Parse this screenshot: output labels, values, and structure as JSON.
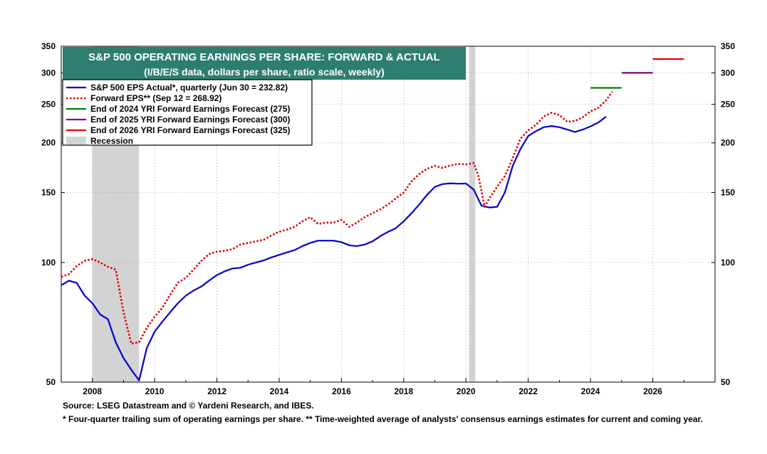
{
  "chart_data": {
    "type": "line",
    "scale": "log",
    "title": "S&P 500 OPERATING EARNINGS PER SHARE: FORWARD & ACTUAL",
    "subtitle": "(I/B/E/S data, dollars per share, ratio scale, weekly)",
    "xlim": [
      2007.0,
      2028.0
    ],
    "ylim": [
      50,
      350
    ],
    "x_ticks": [
      2008,
      2010,
      2012,
      2014,
      2016,
      2018,
      2020,
      2022,
      2024,
      2026
    ],
    "y_ticks": [
      50,
      100,
      150,
      200,
      250,
      300,
      350
    ],
    "recessions": [
      [
        2008.0,
        2009.5
      ],
      [
        2020.1,
        2020.3
      ]
    ],
    "legend": [
      {
        "label": "S&P 500 EPS Actual*, quarterly (Jun 30 = 232.82)",
        "color": "#0000cc",
        "style": "solid"
      },
      {
        "label": "Forward EPS** (Sep 12 = 268.92)",
        "color": "#dd0000",
        "style": "dotted"
      },
      {
        "label": "End of 2024 YRI Forward Earnings Forecast (275)",
        "color": "#008000",
        "style": "solid"
      },
      {
        "label": "End of 2025 YRI Forward Earnings Forecast (300)",
        "color": "#800080",
        "style": "solid"
      },
      {
        "label": "End of 2026 YRI Forward Earnings Forecast (325)",
        "color": "#ee0000",
        "style": "solid"
      },
      {
        "label": "Recession",
        "color": "#d3d3d3",
        "style": "box"
      }
    ],
    "series": [
      {
        "name": "S&P 500 EPS Actual",
        "color": "#0000cc",
        "style": "solid",
        "points": [
          [
            2007.0,
            87.7
          ],
          [
            2007.25,
            90.0
          ],
          [
            2007.5,
            88.8
          ],
          [
            2007.75,
            82.5
          ],
          [
            2008.0,
            79.0
          ],
          [
            2008.25,
            74.0
          ],
          [
            2008.5,
            72.0
          ],
          [
            2008.75,
            63.0
          ],
          [
            2009.0,
            57.5
          ],
          [
            2009.25,
            53.7
          ],
          [
            2009.5,
            50.5
          ],
          [
            2009.75,
            61.0
          ],
          [
            2010.0,
            67.0
          ],
          [
            2010.25,
            71.0
          ],
          [
            2010.5,
            75.0
          ],
          [
            2010.75,
            79.0
          ],
          [
            2011.0,
            82.5
          ],
          [
            2011.25,
            85.0
          ],
          [
            2011.5,
            87.0
          ],
          [
            2011.75,
            90.0
          ],
          [
            2012.0,
            93.0
          ],
          [
            2012.25,
            95.0
          ],
          [
            2012.5,
            96.6
          ],
          [
            2012.75,
            97.0
          ],
          [
            2013.0,
            98.7
          ],
          [
            2013.25,
            100.0
          ],
          [
            2013.5,
            101.2
          ],
          [
            2013.75,
            103.0
          ],
          [
            2014.0,
            104.5
          ],
          [
            2014.25,
            106.0
          ],
          [
            2014.5,
            107.5
          ],
          [
            2014.75,
            110.0
          ],
          [
            2015.0,
            112.0
          ],
          [
            2015.25,
            113.5
          ],
          [
            2015.5,
            113.5
          ],
          [
            2015.75,
            113.5
          ],
          [
            2016.0,
            112.5
          ],
          [
            2016.25,
            110.5
          ],
          [
            2016.5,
            110.0
          ],
          [
            2016.75,
            111.0
          ],
          [
            2017.0,
            113.0
          ],
          [
            2017.25,
            116.5
          ],
          [
            2017.5,
            119.5
          ],
          [
            2017.75,
            122.0
          ],
          [
            2018.0,
            127.0
          ],
          [
            2018.25,
            133.0
          ],
          [
            2018.5,
            140.0
          ],
          [
            2018.75,
            148.0
          ],
          [
            2019.0,
            155.0
          ],
          [
            2019.25,
            157.5
          ],
          [
            2019.5,
            158.2
          ],
          [
            2019.75,
            157.8
          ],
          [
            2020.0,
            158.0
          ],
          [
            2020.25,
            152.5
          ],
          [
            2020.5,
            139.0
          ],
          [
            2020.75,
            137.5
          ],
          [
            2021.0,
            138.0
          ],
          [
            2021.25,
            150.0
          ],
          [
            2021.5,
            175.0
          ],
          [
            2021.75,
            193.0
          ],
          [
            2022.0,
            208.0
          ],
          [
            2022.25,
            214.0
          ],
          [
            2022.5,
            219.0
          ],
          [
            2022.75,
            220.5
          ],
          [
            2023.0,
            219.0
          ],
          [
            2023.25,
            216.0
          ],
          [
            2023.5,
            213.0
          ],
          [
            2023.75,
            216.0
          ],
          [
            2024.0,
            220.0
          ],
          [
            2024.25,
            225.0
          ],
          [
            2024.5,
            232.8
          ]
        ]
      },
      {
        "name": "Forward EPS",
        "color": "#dd0000",
        "style": "dotted",
        "points": [
          [
            2007.0,
            92.0
          ],
          [
            2007.25,
            93.5
          ],
          [
            2007.5,
            98.0
          ],
          [
            2007.75,
            101.0
          ],
          [
            2008.0,
            102.0
          ],
          [
            2008.25,
            100.0
          ],
          [
            2008.5,
            97.5
          ],
          [
            2008.75,
            96.0
          ],
          [
            2009.0,
            75.0
          ],
          [
            2009.25,
            62.5
          ],
          [
            2009.5,
            63.0
          ],
          [
            2009.75,
            68.5
          ],
          [
            2010.0,
            73.0
          ],
          [
            2010.25,
            77.0
          ],
          [
            2010.5,
            83.0
          ],
          [
            2010.75,
            89.0
          ],
          [
            2011.0,
            91.5
          ],
          [
            2011.25,
            96.0
          ],
          [
            2011.5,
            101.0
          ],
          [
            2011.75,
            105.0
          ],
          [
            2012.0,
            106.5
          ],
          [
            2012.25,
            107.0
          ],
          [
            2012.5,
            108.0
          ],
          [
            2012.75,
            111.0
          ],
          [
            2013.0,
            112.0
          ],
          [
            2013.25,
            113.0
          ],
          [
            2013.5,
            114.0
          ],
          [
            2013.75,
            117.0
          ],
          [
            2014.0,
            119.5
          ],
          [
            2014.25,
            121.0
          ],
          [
            2014.5,
            123.0
          ],
          [
            2014.75,
            127.0
          ],
          [
            2015.0,
            130.0
          ],
          [
            2015.25,
            125.0
          ],
          [
            2015.5,
            126.0
          ],
          [
            2015.75,
            126.0
          ],
          [
            2016.0,
            128.0
          ],
          [
            2016.25,
            123.0
          ],
          [
            2016.5,
            126.0
          ],
          [
            2016.75,
            130.0
          ],
          [
            2017.0,
            133.0
          ],
          [
            2017.25,
            136.0
          ],
          [
            2017.5,
            140.0
          ],
          [
            2017.75,
            145.0
          ],
          [
            2018.0,
            150.0
          ],
          [
            2018.25,
            160.0
          ],
          [
            2018.5,
            167.0
          ],
          [
            2018.75,
            172.0
          ],
          [
            2019.0,
            175.0
          ],
          [
            2019.25,
            173.0
          ],
          [
            2019.5,
            175.5
          ],
          [
            2019.75,
            177.0
          ],
          [
            2020.0,
            176.5
          ],
          [
            2020.25,
            178.0
          ],
          [
            2020.4,
            165.0
          ],
          [
            2020.6,
            138.0
          ],
          [
            2020.75,
            145.0
          ],
          [
            2021.0,
            155.0
          ],
          [
            2021.25,
            165.0
          ],
          [
            2021.5,
            183.0
          ],
          [
            2021.75,
            205.0
          ],
          [
            2022.0,
            215.0
          ],
          [
            2022.25,
            222.0
          ],
          [
            2022.5,
            233.0
          ],
          [
            2022.75,
            238.0
          ],
          [
            2023.0,
            235.0
          ],
          [
            2023.25,
            226.0
          ],
          [
            2023.5,
            227.0
          ],
          [
            2023.75,
            232.0
          ],
          [
            2024.0,
            240.0
          ],
          [
            2024.25,
            245.0
          ],
          [
            2024.5,
            256.0
          ],
          [
            2024.7,
            268.9
          ]
        ]
      }
    ],
    "forecasts": [
      {
        "label": "End of 2024 YRI Forward Earnings Forecast (275)",
        "color": "#008000",
        "x": [
          2024.0,
          2025.0
        ],
        "y": 275
      },
      {
        "label": "End of 2025 YRI Forward Earnings Forecast (300)",
        "color": "#800080",
        "x": [
          2025.0,
          2026.0
        ],
        "y": 300
      },
      {
        "label": "End of 2026 YRI Forward Earnings Forecast (325)",
        "color": "#ee0000",
        "x": [
          2026.0,
          2027.0
        ],
        "y": 325
      }
    ]
  },
  "footer": {
    "source": "Source: LSEG Datastream and © Yardeni Research, and IBES.",
    "notes": "* Four-quarter trailing sum of operating earnings per share.   ** Time-weighted average of analysts' consensus earnings estimates for current and coming year."
  }
}
